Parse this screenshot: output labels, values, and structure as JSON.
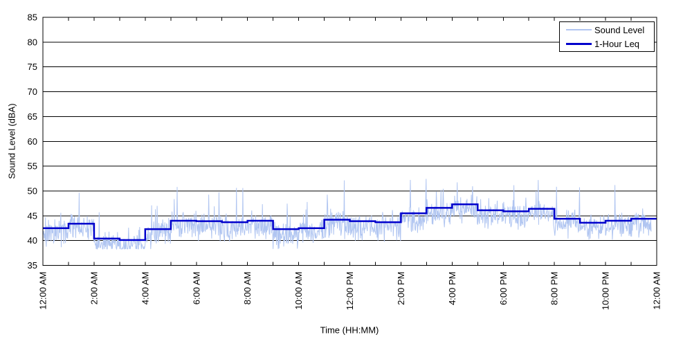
{
  "chart_data": {
    "type": "line",
    "title": "",
    "xlabel": "Time (HH:MM)",
    "ylabel": "Sound Level (dBA)",
    "ylim": [
      35,
      85
    ],
    "yticks": [
      35,
      40,
      45,
      50,
      55,
      60,
      65,
      70,
      75,
      80,
      85
    ],
    "x_hours_range": [
      0,
      24
    ],
    "xtick_every_hours": 1,
    "xtick_label_every_hours": 2,
    "xtick_labels": [
      "12:00 AM",
      "2:00 AM",
      "4:00 AM",
      "6:00 AM",
      "8:00 AM",
      "10:00 AM",
      "12:00 PM",
      "2:00 PM",
      "4:00 PM",
      "6:00 PM",
      "8:00 PM",
      "10:00 PM",
      "12:00 AM"
    ],
    "grid": "horizontal",
    "legend_position": "top-right",
    "axis_color": "#000000",
    "background_color": "#ffffff",
    "series": [
      {
        "name": "Sound Level",
        "type": "minute-samples",
        "color": "#b0c5f1",
        "line_width": 1,
        "samples_per_hour": 60,
        "observed_min": 38.3,
        "observed_max": 54.4,
        "noise_model": {
          "seed": 20,
          "mean_offset": -0.9,
          "jitter": 2.4,
          "spike_chance": 0.05,
          "spike_base": 1.5,
          "spike_max_extra": 7.5,
          "dip_chance": 0.05,
          "dip_max_extra": 2.2
        }
      },
      {
        "name": "1-Hour Leq",
        "type": "hourly-step",
        "color": "#0000cc",
        "line_width": 2.5,
        "hourly_values": [
          42.5,
          43.4,
          40.4,
          40.1,
          42.3,
          44.0,
          43.9,
          43.7,
          44.0,
          42.3,
          42.5,
          44.2,
          43.9,
          43.7,
          45.5,
          46.6,
          47.3,
          46.1,
          45.9,
          46.4,
          44.4,
          43.6,
          44.0,
          44.4
        ]
      }
    ]
  }
}
